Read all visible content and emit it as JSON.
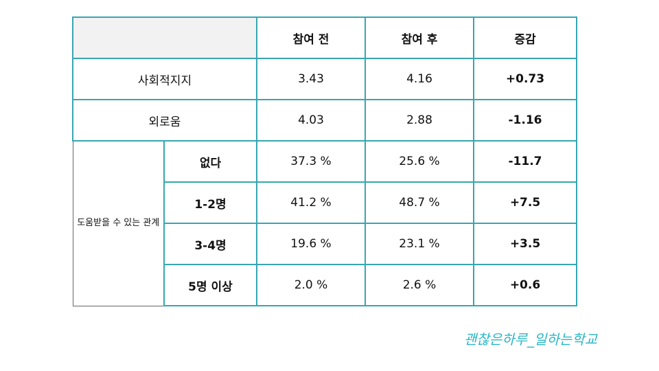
{
  "table": {
    "headers": [
      "참여 전",
      "참여 후",
      "증감"
    ],
    "rows": [
      {
        "label": "사회적지지",
        "before": "3.43",
        "after": "4.16",
        "change": "+0.73"
      },
      {
        "label": "외로움",
        "before": "4.03",
        "after": "2.88",
        "change": "-1.16"
      }
    ],
    "group": {
      "label": "도움받을 수 있는 관계",
      "rows": [
        {
          "label": "없다",
          "before": "37.3 %",
          "after": "25.6 %",
          "change": "-11.7"
        },
        {
          "label": "1-2명",
          "before": "41.2 %",
          "after": "48.7 %",
          "change": "+7.5"
        },
        {
          "label": "3-4명",
          "before": "19.6 %",
          "after": "23.1 %",
          "change": "+3.5"
        },
        {
          "label": "5명 이상",
          "before": "2.0 %",
          "after": "2.6 %",
          "change": "+0.6"
        }
      ]
    }
  },
  "logo": {
    "text": "괜찮은하루_일하는학교"
  }
}
